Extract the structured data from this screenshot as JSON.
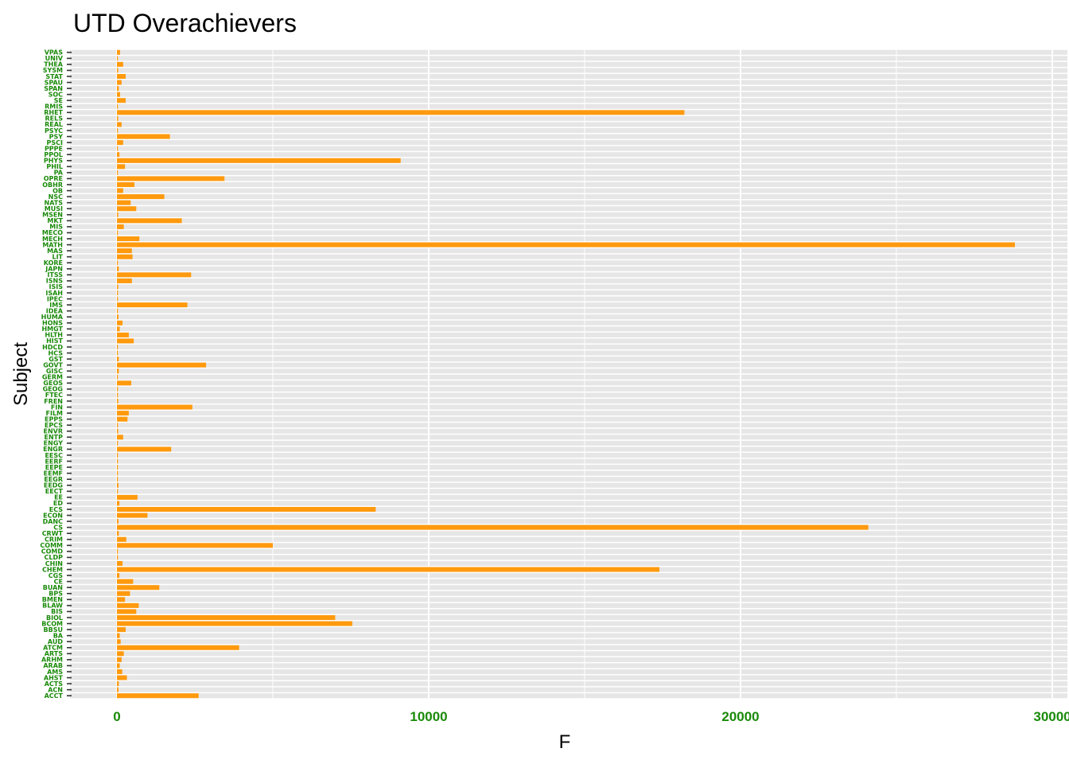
{
  "chart_data": {
    "type": "bar",
    "orientation": "horizontal",
    "title": "UTD Overachievers",
    "xlabel": "F",
    "ylabel": "Subject",
    "xlim": [
      -1500,
      30000
    ],
    "xticks": [
      0,
      10000,
      20000,
      30000
    ],
    "grid": true,
    "legend": "none",
    "colors": {
      "bar": "#ff9a0e",
      "tick_label": "#1a8a0a",
      "grid_band": "#e6e6e6"
    },
    "categories": [
      "VPAS",
      "UNIV",
      "THEA",
      "SYSM",
      "STAT",
      "SPAU",
      "SPAN",
      "SOC",
      "SE",
      "RMIS",
      "RHET",
      "RELS",
      "REAL",
      "PSYC",
      "PSY",
      "PSCI",
      "PPPE",
      "PPOL",
      "PHYS",
      "PHIL",
      "PA",
      "OPRE",
      "OBHR",
      "OB",
      "NSC",
      "NATS",
      "MUSI",
      "MSEN",
      "MKT",
      "MIS",
      "MECO",
      "MECH",
      "MATH",
      "MAS",
      "LIT",
      "KORE",
      "JAPN",
      "ITSS",
      "ISNS",
      "ISIS",
      "ISAH",
      "IPEC",
      "IMS",
      "IDEA",
      "HUMA",
      "HONS",
      "HMGT",
      "HLTH",
      "HIST",
      "HDCD",
      "HCS",
      "GST",
      "GOVT",
      "GISC",
      "GERM",
      "GEOS",
      "GEOG",
      "FTEC",
      "FREN",
      "FIN",
      "FILM",
      "EPPS",
      "EPCS",
      "ENVR",
      "ENTP",
      "ENGY",
      "ENGR",
      "EESC",
      "EERF",
      "EEPE",
      "EEMF",
      "EEGR",
      "EEDG",
      "EECT",
      "EE",
      "ED",
      "ECS",
      "ECON",
      "DANC",
      "CS",
      "CRWT",
      "CRIM",
      "COMM",
      "COMD",
      "CLDP",
      "CHIN",
      "CHEM",
      "CGS",
      "CE",
      "BUAN",
      "BPS",
      "BMEN",
      "BLAW",
      "BIS",
      "BIOL",
      "BCOM",
      "BBSU",
      "BA",
      "AUD",
      "ATCM",
      "ARTS",
      "ARHM",
      "ARAB",
      "AMS",
      "AHST",
      "ACTS",
      "ACN",
      "ACCT"
    ],
    "values": [
      100,
      20,
      200,
      40,
      280,
      150,
      60,
      100,
      280,
      20,
      18200,
      40,
      150,
      20,
      1700,
      200,
      10,
      80,
      9100,
      260,
      30,
      3450,
      560,
      200,
      1520,
      440,
      620,
      40,
      2080,
      220,
      30,
      720,
      28800,
      480,
      500,
      10,
      60,
      2380,
      480,
      40,
      20,
      30,
      2260,
      10,
      50,
      180,
      90,
      380,
      540,
      10,
      10,
      60,
      2860,
      60,
      10,
      460,
      30,
      30,
      40,
      2420,
      380,
      340,
      30,
      40,
      200,
      20,
      1740,
      20,
      10,
      30,
      10,
      20,
      50,
      20,
      660,
      80,
      8300,
      980,
      50,
      24100,
      60,
      300,
      5000,
      20,
      20,
      180,
      17400,
      80,
      520,
      1360,
      420,
      260,
      700,
      620,
      7000,
      7550,
      280,
      90,
      120,
      3920,
      220,
      150,
      90,
      170,
      320,
      60,
      50,
      2620
    ]
  }
}
